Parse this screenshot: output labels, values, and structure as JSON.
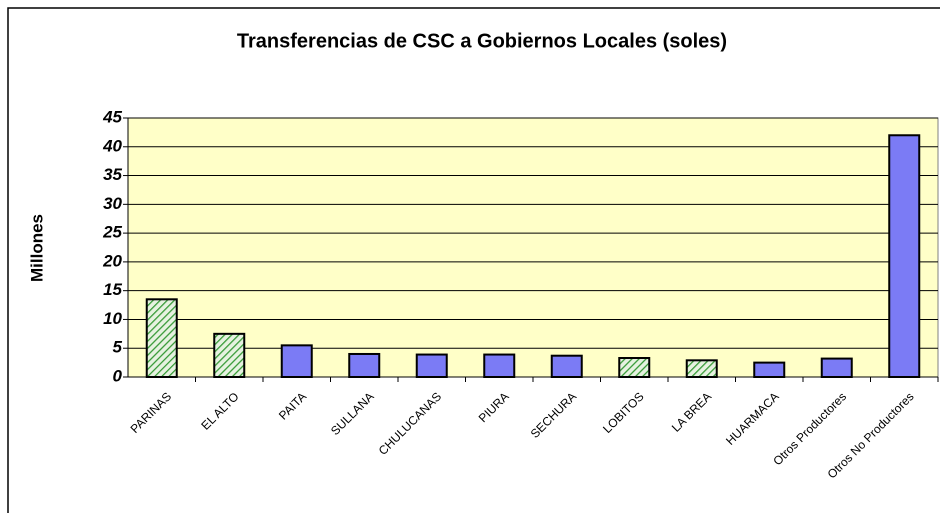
{
  "chart_data": {
    "type": "bar",
    "title": "Transferencias de CSC a Gobiernos Locales (soles)",
    "y_label": "Millones",
    "categories": [
      "PARINAS",
      "EL ALTO",
      "PAITA",
      "SULLANA",
      "CHULUCANAS",
      "PIURA",
      "SECHURA",
      "LOBITOS",
      "LA BREA",
      "HUARMACA",
      "Otros Productores",
      "Otros No Productores"
    ],
    "values": [
      13.5,
      7.5,
      5.5,
      4,
      3.9,
      3.9,
      3.7,
      3.3,
      2.9,
      2.5,
      3.2,
      42
    ],
    "colors": [
      "#339933",
      "#339933",
      "#7b7bf5",
      "#7b7bf5",
      "#7b7bf5",
      "#7b7bf5",
      "#7b7bf5",
      "#339933",
      "#339933",
      "#7b7bf5",
      "#7b7bf5",
      "#7b7bf5"
    ],
    "hatch": [
      true,
      true,
      false,
      false,
      false,
      false,
      false,
      true,
      true,
      false,
      false,
      false
    ],
    "ylim": [
      0,
      45
    ],
    "yticks": [
      0,
      5,
      10,
      15,
      20,
      25,
      30,
      35,
      40,
      45
    ],
    "grid": true,
    "plot_background": "#ffffc8"
  }
}
